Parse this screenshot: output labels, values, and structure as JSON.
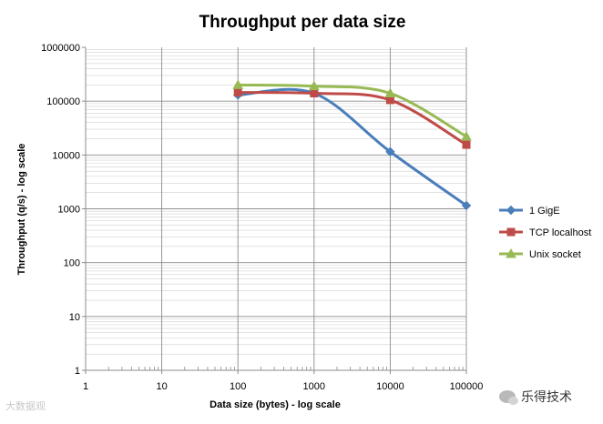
{
  "chart_data": {
    "type": "line",
    "title": "Throughput per data size",
    "xlabel": "Data size (bytes) - log scale",
    "ylabel": "Throughput (q/s) - log scale",
    "xscale": "log",
    "yscale": "log",
    "xlim": [
      1,
      100000
    ],
    "ylim": [
      1,
      1000000
    ],
    "x_ticks": [
      "1",
      "10",
      "100",
      "1000",
      "10000",
      "100000"
    ],
    "y_ticks": [
      "1",
      "10",
      "100",
      "1000",
      "10000",
      "100000",
      "1000000"
    ],
    "grid": true,
    "legend_position": "right",
    "series": [
      {
        "name": "1 GigE",
        "color": "#4A7EBB",
        "marker": "diamond",
        "x": [
          100,
          1000,
          10000,
          100000
        ],
        "y": [
          130000,
          140000,
          11500,
          1150
        ]
      },
      {
        "name": "TCP localhost",
        "color": "#BE4B48",
        "marker": "square",
        "x": [
          100,
          1000,
          10000,
          100000
        ],
        "y": [
          145000,
          140000,
          105000,
          15500
        ]
      },
      {
        "name": "Unix socket",
        "color": "#98B954",
        "marker": "triangle",
        "x": [
          100,
          1000,
          10000,
          100000
        ],
        "y": [
          200000,
          190000,
          140000,
          22000
        ]
      }
    ]
  },
  "watermarks": {
    "left": "大数据观",
    "right": "乐得技术"
  }
}
